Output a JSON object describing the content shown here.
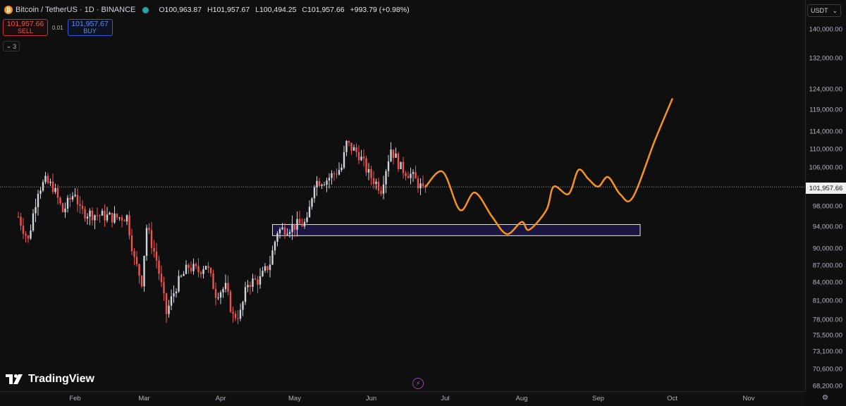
{
  "header": {
    "symbol": "Bitcoin / TetherUS · 1D · BINANCE",
    "coin_icon": "bitcoin-icon",
    "ohlc": {
      "o_label": "O",
      "o": "100,963.87",
      "h_label": "H",
      "h": "101,957.67",
      "l_label": "L",
      "l": "100,494.25",
      "c_label": "C",
      "c": "101,957.66",
      "change": "+993.79 (+0.98%)"
    }
  },
  "trade": {
    "sell_price": "101,957.66",
    "sell_label": "SELL",
    "spread": "0.01",
    "buy_price": "101,957.67",
    "buy_label": "BUY"
  },
  "indicators_toggle": "3",
  "currency": "USDT",
  "current_price": "101,957.66",
  "branding": "TradingView",
  "colors": {
    "up": "#d1d4dc",
    "down": "#ef5350",
    "projection": "#f7931a",
    "zone_fill": "#1a1640",
    "zone_border": "#e6e6e6"
  },
  "chart_data": {
    "type": "candlestick",
    "title": "Bitcoin / TetherUS · 1D · BINANCE",
    "y_ticks": [
      "140,000.00",
      "132,000.00",
      "124,000.00",
      "119,000.00",
      "114,000.00",
      "110,000.00",
      "106,000.00",
      "98,000.00",
      "94,000.00",
      "90,000.00",
      "87,000.00",
      "84,000.00",
      "81,000.00",
      "78,000.00",
      "75,500.00",
      "73,100.00",
      "70,600.00",
      "68,200.00"
    ],
    "x_ticks": [
      "Feb",
      "Mar",
      "Apr",
      "May",
      "Jun",
      "Jul",
      "Aug",
      "Sep",
      "Oct",
      "Nov"
    ],
    "log_scale": true,
    "current_price": 101957.66,
    "ylim": [
      67500,
      146000
    ],
    "anchors": [
      [
        "2025-01-09",
        96000
      ],
      [
        "2025-01-13",
        91500
      ],
      [
        "2025-01-17",
        101500
      ],
      [
        "2025-01-20",
        103000
      ],
      [
        "2025-01-23",
        102000
      ],
      [
        "2025-01-27",
        97000
      ],
      [
        "2025-02-01",
        101000
      ],
      [
        "2025-02-03",
        97000
      ],
      [
        "2025-02-08",
        96500
      ],
      [
        "2025-02-12",
        96200
      ],
      [
        "2025-02-17",
        95800
      ],
      [
        "2025-02-22",
        96000
      ],
      [
        "2025-02-25",
        88000
      ],
      [
        "2025-02-28",
        84300
      ],
      [
        "2025-03-02",
        94000
      ],
      [
        "2025-03-06",
        88000
      ],
      [
        "2025-03-10",
        79000
      ],
      [
        "2025-03-14",
        83500
      ],
      [
        "2025-03-19",
        86800
      ],
      [
        "2025-03-23",
        86000
      ],
      [
        "2025-03-26",
        87300
      ],
      [
        "2025-03-30",
        82300
      ],
      [
        "2025-04-03",
        83200
      ],
      [
        "2025-04-06",
        78500
      ],
      [
        "2025-04-09",
        79000
      ],
      [
        "2025-04-12",
        84000
      ],
      [
        "2025-04-17",
        84600
      ],
      [
        "2025-04-21",
        87500
      ],
      [
        "2025-04-24",
        93300
      ],
      [
        "2025-04-30",
        94200
      ],
      [
        "2025-05-06",
        94800
      ],
      [
        "2025-05-09",
        103000
      ],
      [
        "2025-05-14",
        103500
      ],
      [
        "2025-05-20",
        106000
      ],
      [
        "2025-05-22",
        111200
      ],
      [
        "2025-05-27",
        108900
      ],
      [
        "2025-05-31",
        104600
      ],
      [
        "2025-06-05",
        101600
      ],
      [
        "2025-06-09",
        110200
      ],
      [
        "2025-06-13",
        105900
      ],
      [
        "2025-06-17",
        104500
      ],
      [
        "2025-06-21",
        102000
      ],
      [
        "2025-06-22",
        100900
      ],
      [
        "2025-06-23",
        101957.66
      ]
    ],
    "projection": [
      [
        "2025-06-23",
        101957
      ],
      [
        "2025-06-30",
        105100
      ],
      [
        "2025-07-07",
        97300
      ],
      [
        "2025-07-13",
        100800
      ],
      [
        "2025-07-20",
        96000
      ],
      [
        "2025-07-26",
        92700
      ],
      [
        "2025-08-01",
        95000
      ],
      [
        "2025-08-04",
        93500
      ],
      [
        "2025-08-11",
        97300
      ],
      [
        "2025-08-14",
        102000
      ],
      [
        "2025-08-20",
        100500
      ],
      [
        "2025-08-24",
        105500
      ],
      [
        "2025-08-28",
        103600
      ],
      [
        "2025-09-01",
        102000
      ],
      [
        "2025-09-05",
        104000
      ],
      [
        "2025-09-10",
        100400
      ],
      [
        "2025-09-15",
        99800
      ],
      [
        "2025-09-24",
        112000
      ],
      [
        "2025-10-01",
        121700
      ]
    ],
    "zone": {
      "from": "2025-04-22",
      "to": "2025-09-18",
      "price_low": 92400,
      "price_high": 94500
    }
  }
}
